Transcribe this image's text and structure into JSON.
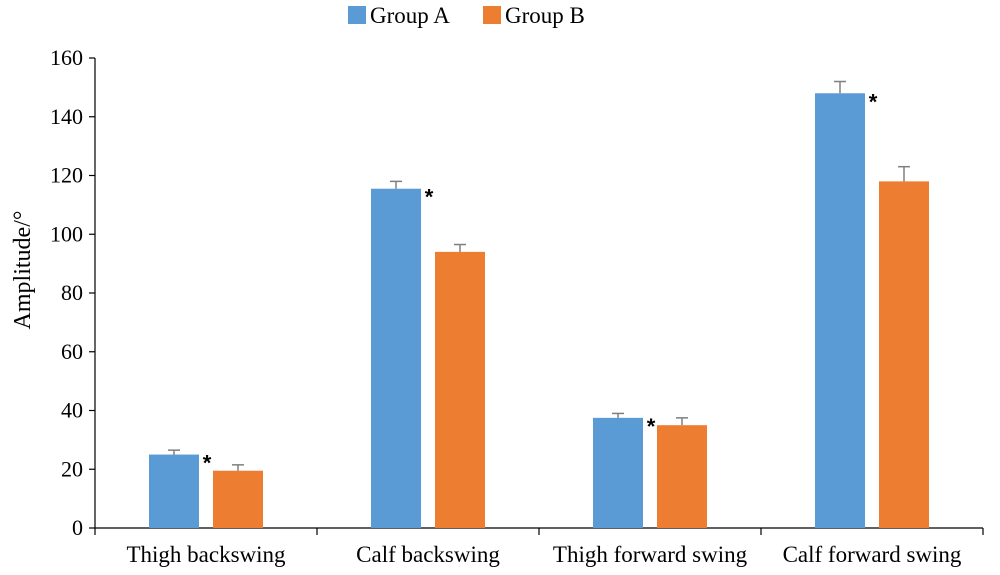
{
  "chart_data": {
    "type": "bar",
    "title": "",
    "xlabel": "",
    "ylabel": "Amplitude/°",
    "ylim": [
      0,
      160
    ],
    "yticks": [
      0,
      20,
      40,
      60,
      80,
      100,
      120,
      140,
      160
    ],
    "grid": false,
    "legend_position": "top",
    "categories": [
      "Thigh backswing",
      "Calf backswing",
      "Thigh forward swing",
      "Calf forward swing"
    ],
    "series": [
      {
        "name": "Group A",
        "color": "#5B9BD5",
        "values": [
          25,
          115.5,
          37.5,
          148
        ],
        "errors": [
          1.5,
          2.5,
          1.5,
          4
        ]
      },
      {
        "name": "Group B",
        "color": "#ED7D31",
        "values": [
          19.5,
          94,
          35,
          118
        ],
        "errors": [
          2,
          2.5,
          2.5,
          5
        ]
      }
    ],
    "annotations": [
      {
        "category": "Thigh backswing",
        "text": "*"
      },
      {
        "category": "Calf backswing",
        "text": "*"
      },
      {
        "category": "Thigh forward swing",
        "text": "*"
      },
      {
        "category": "Calf forward swing",
        "text": "*"
      }
    ]
  }
}
